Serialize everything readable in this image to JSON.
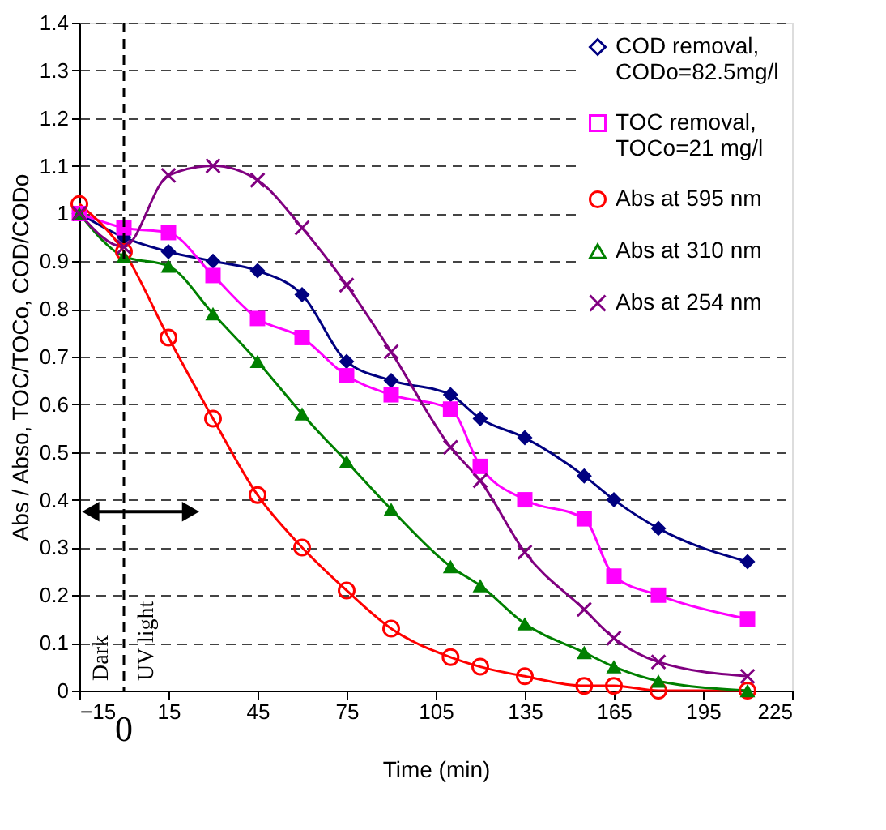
{
  "chart_data": {
    "type": "line",
    "xlabel": "Time (min)",
    "ylabel": "Abs / Abso, TOC/TOCo, COD/CODo",
    "x": [
      -15,
      0,
      15,
      30,
      45,
      60,
      75,
      90,
      110,
      120,
      135,
      155,
      165,
      180,
      210
    ],
    "series": [
      {
        "name": "COD removal,\nCODo=82.5mg/l",
        "color": "#000080",
        "marker": "diamond",
        "values": [
          1.0,
          0.95,
          0.92,
          0.9,
          0.88,
          0.83,
          0.69,
          0.65,
          0.62,
          0.57,
          0.53,
          0.45,
          0.4,
          0.34,
          0.27
        ]
      },
      {
        "name": "TOC removal,\nTOCo=21 mg/l",
        "color": "#ff00ff",
        "marker": "square",
        "values": [
          1.0,
          0.97,
          0.96,
          0.87,
          0.78,
          0.74,
          0.66,
          0.62,
          0.59,
          0.47,
          0.4,
          0.36,
          0.24,
          0.2,
          0.15
        ]
      },
      {
        "name": "Abs at 595 nm",
        "color": "#ff0000",
        "marker": "circle",
        "values": [
          1.02,
          0.92,
          0.74,
          0.57,
          0.41,
          0.3,
          0.21,
          0.13,
          0.07,
          0.05,
          0.03,
          0.01,
          0.01,
          0.0,
          0.0
        ]
      },
      {
        "name": "Abs at 310 nm",
        "color": "#008000",
        "marker": "triangle",
        "values": [
          1.0,
          0.91,
          0.89,
          0.79,
          0.69,
          0.58,
          0.48,
          0.38,
          0.26,
          0.22,
          0.14,
          0.08,
          0.05,
          0.02,
          0.0
        ]
      },
      {
        "name": "Abs at 254 nm",
        "color": "#800080",
        "marker": "cross",
        "values": [
          1.0,
          0.93,
          1.08,
          1.1,
          1.07,
          0.97,
          0.85,
          0.71,
          0.51,
          0.44,
          0.29,
          0.17,
          0.11,
          0.06,
          0.03
        ]
      }
    ],
    "xlim": [
      -15,
      225
    ],
    "xticks": [
      -15,
      15,
      45,
      75,
      105,
      135,
      165,
      195,
      225
    ],
    "ylim": [
      0,
      1.4
    ],
    "yticks": [
      0,
      0.1,
      0.2,
      0.3,
      0.4,
      0.5,
      0.6,
      0.7,
      0.8,
      0.9,
      1.0,
      1.1,
      1.2,
      1.3,
      1.4
    ],
    "grid": "y",
    "legend": "top right",
    "line_style": "solid",
    "ref_lines": [
      {
        "axis": "x",
        "value": 0,
        "label": "0",
        "color": "#000000",
        "line_style": "dashed"
      }
    ],
    "annotations": [
      "Dark",
      "UV light"
    ]
  }
}
